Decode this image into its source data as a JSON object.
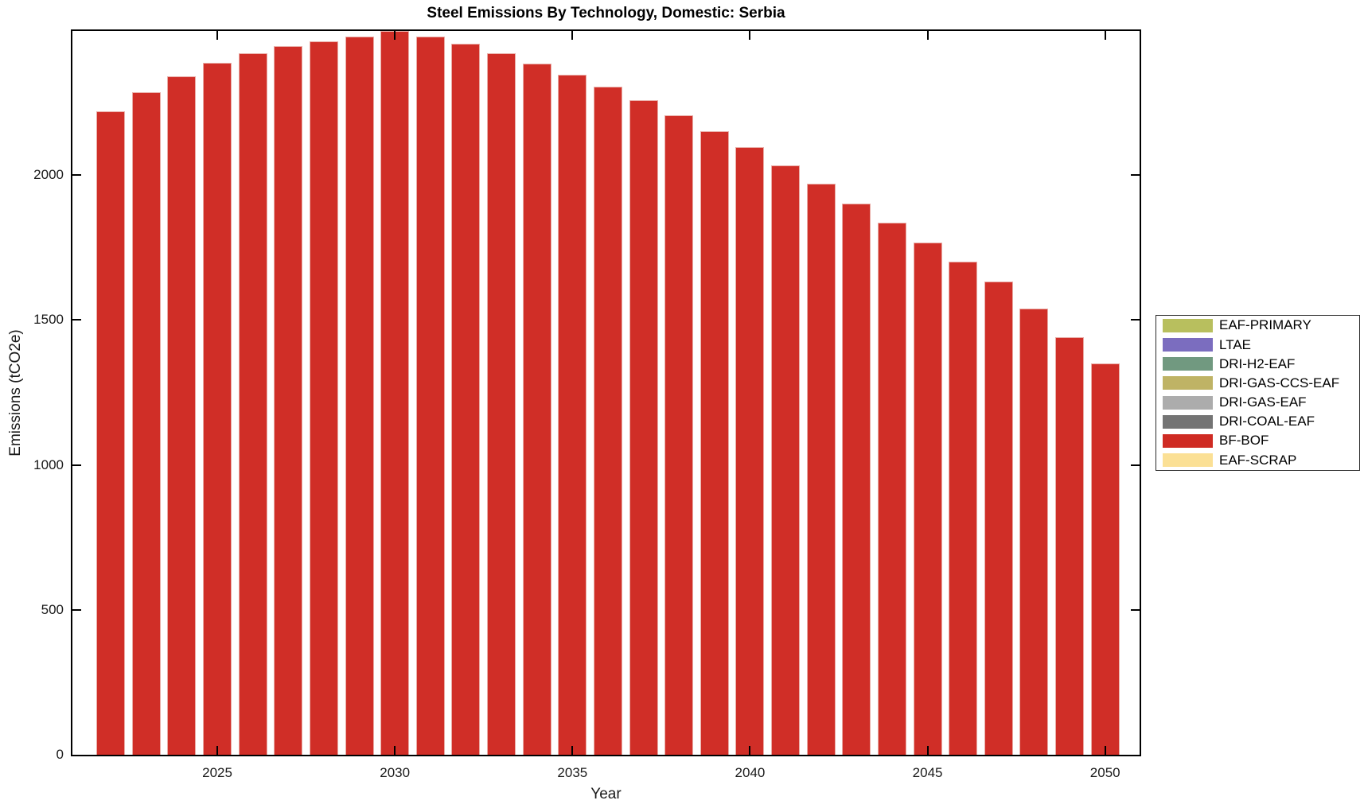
{
  "figure": {
    "background": "#ffffff",
    "axis_color": "#000000",
    "tick_label_color": "#1a1a1a"
  },
  "chart_data": {
    "type": "bar",
    "title": "Steel Emissions By Technology, Domestic: Serbia",
    "xlabel": "Year",
    "ylabel": "Emissions (tCO2e)",
    "x": [
      2022,
      2023,
      2024,
      2025,
      2026,
      2027,
      2028,
      2029,
      2030,
      2031,
      2032,
      2033,
      2034,
      2035,
      2036,
      2037,
      2038,
      2039,
      2040,
      2041,
      2042,
      2043,
      2044,
      2045,
      2046,
      2047,
      2048,
      2049,
      2050
    ],
    "series": [
      {
        "name": "BF-BOF",
        "color": "#d02e27",
        "edge_color": "#e9aca6",
        "values": [
          2220,
          2287,
          2341,
          2388,
          2420,
          2444,
          2461,
          2478,
          2497,
          2478,
          2452,
          2420,
          2385,
          2345,
          2304,
          2257,
          2206,
          2152,
          2096,
          2033,
          1969,
          1902,
          1837,
          1768,
          1701,
          1634,
          1540,
          1441,
          1349
        ]
      }
    ],
    "legend": [
      {
        "label": "EAF-PRIMARY",
        "color": "#b8bf5e"
      },
      {
        "label": "LTAE",
        "color": "#7b6dbf"
      },
      {
        "label": "DRI-H2-EAF",
        "color": "#719980"
      },
      {
        "label": "DRI-GAS-CCS-EAF",
        "color": "#bfb365"
      },
      {
        "label": "DRI-GAS-EAF",
        "color": "#acacac"
      },
      {
        "label": "DRI-COAL-EAF",
        "color": "#747474"
      },
      {
        "label": "BF-BOF",
        "color": "#cf2b23"
      },
      {
        "label": "EAF-SCRAP",
        "color": "#fbe095"
      }
    ],
    "xticks": [
      2025,
      2030,
      2035,
      2040,
      2045,
      2050
    ],
    "yticks": [
      0,
      500,
      1000,
      1500,
      2000
    ],
    "xlim": [
      2020.92,
      2050.97
    ],
    "ylim": [
      0,
      2497
    ],
    "bar_width_fraction": 0.8,
    "grid": false,
    "legend_position": "outside-right",
    "tick_direction": "in",
    "box": true
  }
}
